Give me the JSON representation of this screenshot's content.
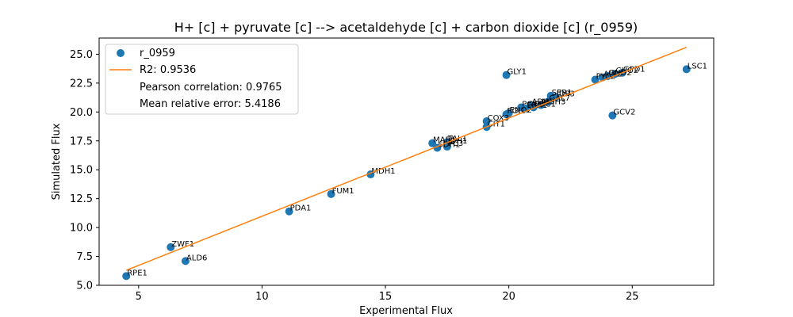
{
  "chart_data": {
    "type": "scatter",
    "title": "H+ [c] + pyruvate [c] --> acetaldehyde [c] + carbon dioxide [c] (r_0959)",
    "xlabel": "Experimental Flux",
    "ylabel": "Simulated Flux",
    "xlim": [
      3.4,
      28.3
    ],
    "ylim": [
      5.0,
      26.4
    ],
    "xticks": [
      5,
      10,
      15,
      20,
      25
    ],
    "yticks": [
      5.0,
      7.5,
      10.0,
      12.5,
      15.0,
      17.5,
      20.0,
      22.5,
      25.0
    ],
    "ytick_labels": [
      "5.0",
      "7.5",
      "10.0",
      "12.5",
      "15.0",
      "17.5",
      "20.0",
      "22.5",
      "25.0"
    ],
    "colors": {
      "points": "#1f77b4",
      "fit": "#ff7f0e"
    },
    "fit_line": {
      "x": [
        4.5,
        27.2
      ],
      "y": [
        6.3,
        25.6
      ]
    },
    "series": [
      {
        "name": "r_0959",
        "points": [
          {
            "label": "RPE1",
            "x": 4.5,
            "y": 5.8
          },
          {
            "label": "ZWF1",
            "x": 6.3,
            "y": 8.3
          },
          {
            "label": "ALD6",
            "x": 6.9,
            "y": 7.1
          },
          {
            "label": "PDA1",
            "x": 11.1,
            "y": 11.4
          },
          {
            "label": "FUM1",
            "x": 12.8,
            "y": 12.9
          },
          {
            "label": "MDH1",
            "x": 14.4,
            "y": 14.6
          },
          {
            "label": "MAE1",
            "x": 16.9,
            "y": 17.3
          },
          {
            "label": "SDH1",
            "x": 17.1,
            "y": 16.9
          },
          {
            "label": "TAL1",
            "x": 17.5,
            "y": 17.4
          },
          {
            "label": "IDH1",
            "x": 17.5,
            "y": 17.2
          },
          {
            "label": "PC3",
            "x": 17.5,
            "y": 17.0
          },
          {
            "label": "CIT1",
            "x": 19.1,
            "y": 18.7
          },
          {
            "label": "COX3",
            "x": 19.1,
            "y": 19.2
          },
          {
            "label": "PGI1",
            "x": 19.9,
            "y": 19.8
          },
          {
            "label": "ENO2",
            "x": 20.0,
            "y": 19.9
          },
          {
            "label": "GLY1",
            "x": 19.9,
            "y": 23.2
          },
          {
            "label": "PGK1",
            "x": 20.5,
            "y": 20.4
          },
          {
            "label": "FBA1",
            "x": 20.7,
            "y": 20.3
          },
          {
            "label": "ADH3",
            "x": 20.9,
            "y": 20.6
          },
          {
            "label": "MDH3",
            "x": 21.3,
            "y": 20.6
          },
          {
            "label": "PDC1",
            "x": 21.0,
            "y": 20.4
          },
          {
            "label": "SER1",
            "x": 21.7,
            "y": 21.4
          },
          {
            "label": "IDP3",
            "x": 21.9,
            "y": 21.3
          },
          {
            "label": "GAL7",
            "x": 21.6,
            "y": 20.9
          },
          {
            "label": "PYC2",
            "x": 23.5,
            "y": 22.8
          },
          {
            "label": "ALT2",
            "x": 23.8,
            "y": 23.0
          },
          {
            "label": "GND2",
            "x": 24.0,
            "y": 23.1
          },
          {
            "label": "CHO2",
            "x": 24.3,
            "y": 23.3
          },
          {
            "label": "GPD1",
            "x": 24.6,
            "y": 23.4
          },
          {
            "label": "GCV2",
            "x": 24.2,
            "y": 19.7
          },
          {
            "label": "LSC1",
            "x": 27.2,
            "y": 23.7
          }
        ]
      }
    ],
    "legend": {
      "position": "top-left",
      "entries": [
        "r_0959",
        "R2: 0.9536",
        "Pearson correlation: 0.9765",
        "Mean relative error: 5.4186"
      ]
    },
    "grid": false
  }
}
